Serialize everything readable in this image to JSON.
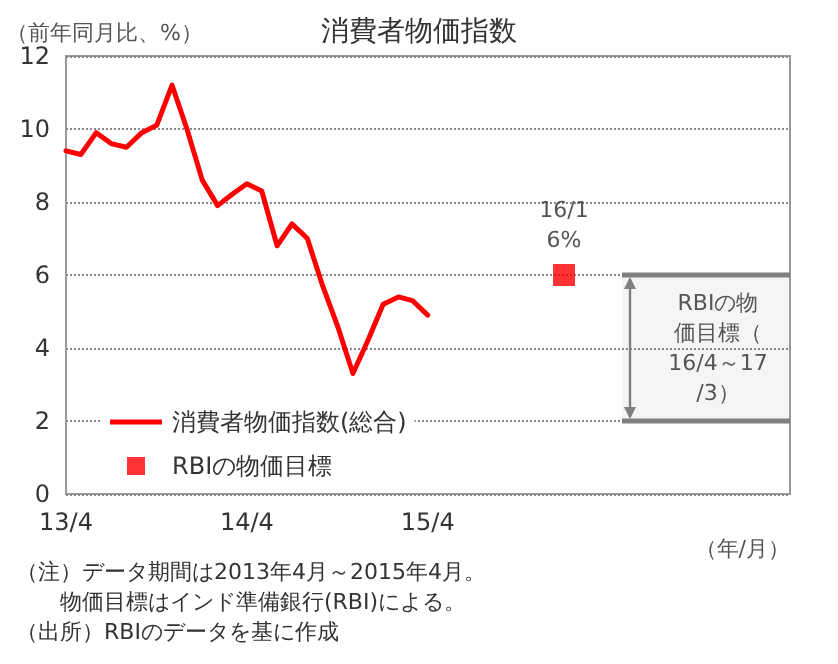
{
  "chart_data": {
    "type": "line",
    "title": "消費者物価指数",
    "ylabel": "（前年同月比、%）",
    "xlabel": "（年/月）",
    "x": [
      "2013-04",
      "2013-05",
      "2013-06",
      "2013-07",
      "2013-08",
      "2013-09",
      "2013-10",
      "2013-11",
      "2013-12",
      "2014-01",
      "2014-02",
      "2014-03",
      "2014-04",
      "2014-05",
      "2014-06",
      "2014-07",
      "2014-08",
      "2014-09",
      "2014-10",
      "2014-11",
      "2014-12",
      "2015-01",
      "2015-02",
      "2015-03",
      "2015-04"
    ],
    "series": [
      {
        "name": "消費者物価指数(総合)",
        "color": "#ff0000",
        "marker": "none",
        "values": [
          9.4,
          9.3,
          9.9,
          9.6,
          9.5,
          9.9,
          10.1,
          11.2,
          10.0,
          8.6,
          7.9,
          8.2,
          8.5,
          8.3,
          6.8,
          7.4,
          7.0,
          5.7,
          4.6,
          3.3,
          4.2,
          5.2,
          5.4,
          5.3,
          4.9
        ]
      },
      {
        "name": "RBIの物価目標",
        "type": "scatter",
        "color": "#ff0000",
        "marker": "square",
        "x": [
          "2016-01"
        ],
        "values": [
          6
        ]
      }
    ],
    "xlim": [
      "2013-04",
      "2017-04"
    ],
    "xticks": [
      {
        "value": "2013-04",
        "label": "13/4"
      },
      {
        "value": "2014-04",
        "label": "14/4"
      },
      {
        "value": "2015-04",
        "label": "15/4"
      }
    ],
    "ylim": [
      0,
      12
    ],
    "yticks": [
      0,
      2,
      4,
      6,
      8,
      10,
      12
    ],
    "grid": "y",
    "legend": "bottom left",
    "bands": [
      {
        "axis": "y",
        "from": 2,
        "to": 6,
        "label": "RBIの物価目標（16/4～17/3）",
        "color": "#808080"
      }
    ],
    "annotations": [
      {
        "text": "16/1\n6%",
        "x": "2016-01",
        "y": 6
      },
      "（注）データ期間は2013年4月～2015年4月。",
      "　　物価目標はインド準備銀行(RBI)による。",
      "（出所）RBIのデータを基に作成"
    ]
  }
}
